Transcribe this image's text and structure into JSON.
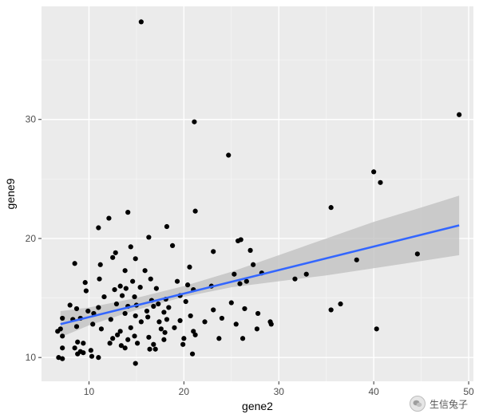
{
  "chart_data": {
    "type": "scatter",
    "title": "",
    "xlabel": "gene2",
    "ylabel": "gene9",
    "xlim": [
      5,
      50.5
    ],
    "ylim": [
      8,
      39.5
    ],
    "x_ticks": [
      10,
      20,
      30,
      40,
      50
    ],
    "y_ticks": [
      10,
      20,
      30
    ],
    "grid": true,
    "legend": "none",
    "colors": {
      "panel": "#ebebeb",
      "grid_major": "#ffffff",
      "grid_minor": "#f5f5f5",
      "points": "#000000",
      "fit_line": "#3366ff",
      "ci_band": "#bfbfbf"
    },
    "points": [
      [
        15.5,
        38.2
      ],
      [
        21.1,
        29.8
      ],
      [
        49.0,
        30.4
      ],
      [
        24.7,
        27.0
      ],
      [
        40.0,
        25.6
      ],
      [
        40.7,
        24.7
      ],
      [
        14.1,
        22.2
      ],
      [
        21.2,
        22.3
      ],
      [
        35.5,
        22.6
      ],
      [
        12.1,
        21.7
      ],
      [
        11.0,
        20.9
      ],
      [
        18.2,
        21.0
      ],
      [
        16.3,
        20.1
      ],
      [
        26.0,
        19.9
      ],
      [
        25.7,
        19.8
      ],
      [
        18.8,
        19.4
      ],
      [
        14.4,
        19.3
      ],
      [
        27.0,
        19.0
      ],
      [
        12.8,
        18.8
      ],
      [
        12.5,
        18.4
      ],
      [
        14.9,
        18.3
      ],
      [
        38.2,
        18.2
      ],
      [
        44.6,
        18.7
      ],
      [
        8.5,
        17.9
      ],
      [
        11.2,
        17.8
      ],
      [
        20.6,
        17.6
      ],
      [
        27.3,
        17.8
      ],
      [
        13.8,
        17.3
      ],
      [
        15.9,
        17.3
      ],
      [
        23.1,
        18.9
      ],
      [
        28.2,
        17.1
      ],
      [
        32.9,
        17.0
      ],
      [
        31.7,
        16.6
      ],
      [
        25.3,
        17.0
      ],
      [
        11.1,
        16.6
      ],
      [
        16.5,
        16.6
      ],
      [
        19.3,
        16.4
      ],
      [
        9.6,
        16.3
      ],
      [
        13.3,
        16.0
      ],
      [
        14.6,
        16.4
      ],
      [
        26.6,
        16.4
      ],
      [
        25.9,
        16.2
      ],
      [
        22.9,
        16.0
      ],
      [
        9.7,
        15.6
      ],
      [
        12.7,
        15.7
      ],
      [
        13.9,
        15.8
      ],
      [
        15.4,
        15.9
      ],
      [
        17.1,
        15.8
      ],
      [
        21.0,
        15.7
      ],
      [
        20.4,
        16.1
      ],
      [
        19.6,
        15.2
      ],
      [
        11.6,
        15.1
      ],
      [
        13.5,
        15.2
      ],
      [
        14.8,
        15.1
      ],
      [
        16.6,
        14.8
      ],
      [
        18.1,
        14.9
      ],
      [
        20.2,
        14.7
      ],
      [
        25.0,
        14.6
      ],
      [
        11.0,
        14.2
      ],
      [
        12.9,
        14.5
      ],
      [
        14.1,
        14.3
      ],
      [
        15.0,
        14.4
      ],
      [
        16.8,
        14.3
      ],
      [
        17.3,
        14.5
      ],
      [
        18.4,
        14.2
      ],
      [
        36.5,
        14.5
      ],
      [
        8.0,
        14.4
      ],
      [
        8.7,
        14.1
      ],
      [
        9.9,
        13.9
      ],
      [
        10.5,
        13.7
      ],
      [
        13.8,
        13.7
      ],
      [
        14.9,
        13.5
      ],
      [
        16.1,
        13.9
      ],
      [
        17.9,
        13.8
      ],
      [
        20.7,
        13.5
      ],
      [
        23.1,
        14.0
      ],
      [
        26.4,
        14.1
      ],
      [
        27.8,
        13.7
      ],
      [
        35.5,
        14.0
      ],
      [
        7.2,
        13.3
      ],
      [
        8.3,
        13.2
      ],
      [
        9.1,
        13.3
      ],
      [
        12.3,
        13.2
      ],
      [
        15.5,
        13.0
      ],
      [
        16.2,
        13.4
      ],
      [
        17.4,
        13.0
      ],
      [
        18.2,
        13.2
      ],
      [
        19.6,
        13.1
      ],
      [
        22.2,
        13.0
      ],
      [
        24.0,
        13.3
      ],
      [
        29.1,
        13.0
      ],
      [
        29.2,
        12.8
      ],
      [
        7.0,
        12.4
      ],
      [
        8.7,
        12.6
      ],
      [
        10.4,
        12.8
      ],
      [
        11.3,
        12.4
      ],
      [
        13.3,
        12.2
      ],
      [
        14.4,
        12.5
      ],
      [
        17.6,
        12.4
      ],
      [
        18.0,
        12.1
      ],
      [
        19.0,
        12.5
      ],
      [
        21.0,
        12.2
      ],
      [
        25.5,
        12.8
      ],
      [
        27.7,
        12.4
      ],
      [
        40.3,
        12.4
      ],
      [
        6.7,
        12.2
      ],
      [
        7.2,
        11.8
      ],
      [
        12.5,
        11.6
      ],
      [
        13.0,
        11.9
      ],
      [
        14.1,
        11.5
      ],
      [
        14.8,
        11.8
      ],
      [
        16.3,
        11.7
      ],
      [
        17.9,
        11.5
      ],
      [
        20.0,
        11.6
      ],
      [
        21.2,
        11.9
      ],
      [
        23.7,
        11.6
      ],
      [
        26.2,
        11.6
      ],
      [
        8.8,
        11.3
      ],
      [
        9.4,
        11.2
      ],
      [
        12.2,
        11.2
      ],
      [
        13.4,
        11.0
      ],
      [
        15.1,
        11.2
      ],
      [
        16.8,
        11.1
      ],
      [
        19.9,
        11.1
      ],
      [
        7.2,
        10.8
      ],
      [
        8.5,
        10.8
      ],
      [
        9.1,
        10.5
      ],
      [
        10.2,
        10.6
      ],
      [
        13.8,
        10.8
      ],
      [
        16.4,
        10.7
      ],
      [
        17.0,
        10.7
      ],
      [
        8.8,
        10.3
      ],
      [
        9.4,
        10.4
      ],
      [
        10.3,
        10.1
      ],
      [
        20.9,
        10.3
      ],
      [
        6.8,
        10.0
      ],
      [
        11.0,
        10.0
      ],
      [
        7.2,
        9.9
      ],
      [
        14.9,
        9.5
      ]
    ],
    "fit_line": {
      "x": [
        7.0,
        49.0
      ],
      "y": [
        12.8,
        21.1
      ]
    },
    "ci_band": {
      "x": [
        7.0,
        10.0,
        15.0,
        20.0,
        25.0,
        30.0,
        35.0,
        40.0,
        45.0,
        49.0
      ],
      "lower": [
        11.7,
        12.7,
        14.0,
        15.1,
        15.9,
        16.4,
        16.9,
        17.5,
        18.1,
        18.6
      ],
      "upper": [
        13.9,
        14.2,
        15.0,
        16.0,
        17.2,
        18.6,
        20.0,
        21.4,
        22.6,
        23.6
      ]
    }
  },
  "watermark": {
    "text": "生信兔子",
    "icon": "wechat-icon"
  }
}
